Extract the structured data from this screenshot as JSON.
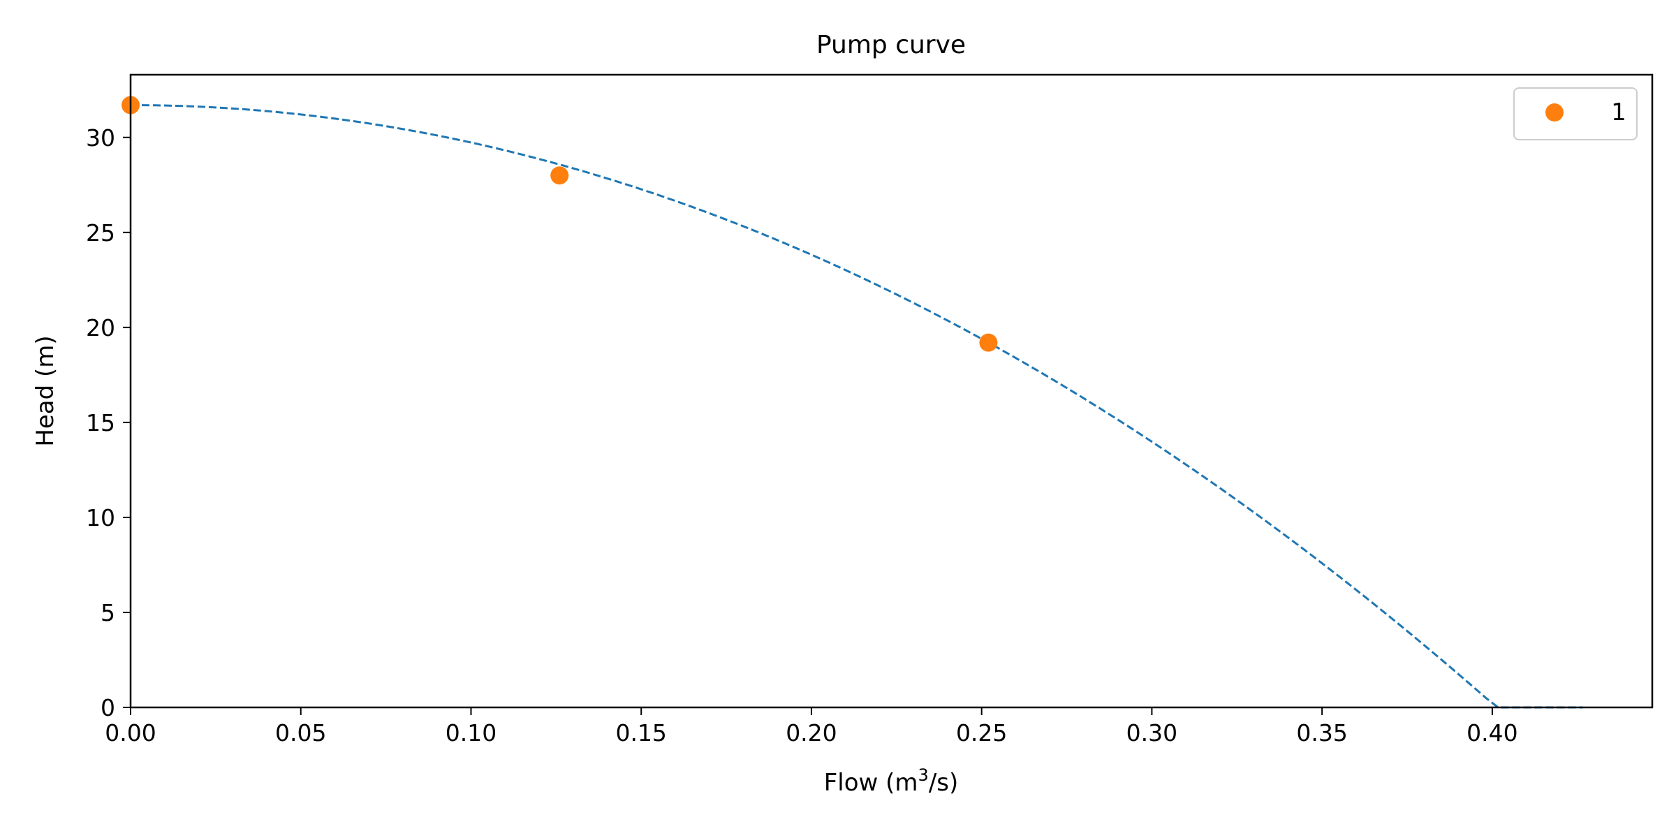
{
  "chart_data": {
    "type": "line",
    "title": "Pump curve",
    "xlabel": {
      "text": "Flow (m",
      "superscript": "3",
      "suffix": "/s)"
    },
    "ylabel": "Head (m)",
    "xlim": [
      0,
      0.447
    ],
    "ylim": [
      0,
      33.3
    ],
    "xticks": [
      0,
      0.05,
      0.1,
      0.15,
      0.2,
      0.25,
      0.3,
      0.35,
      0.4
    ],
    "xtick_labels": [
      "0.00",
      "0.05",
      "0.10",
      "0.15",
      "0.20",
      "0.25",
      "0.30",
      "0.35",
      "0.40"
    ],
    "yticks": [
      0,
      5,
      10,
      15,
      20,
      25,
      30
    ],
    "ytick_labels": [
      "0",
      "5",
      "10",
      "15",
      "20",
      "25",
      "30"
    ],
    "grid": false,
    "legend_position": "top-right",
    "series": [
      {
        "kind": "points",
        "name": "1",
        "color": "#ff7f0e",
        "x": [
          0.0,
          0.126,
          0.252
        ],
        "y": [
          31.7,
          28.0,
          19.2
        ]
      },
      {
        "kind": "dashed-curve",
        "color": "#1f77b4",
        "equation": "y = 31.7 - 174.2 * x^2",
        "x_range": [
          0,
          0.4266
        ]
      }
    ]
  }
}
